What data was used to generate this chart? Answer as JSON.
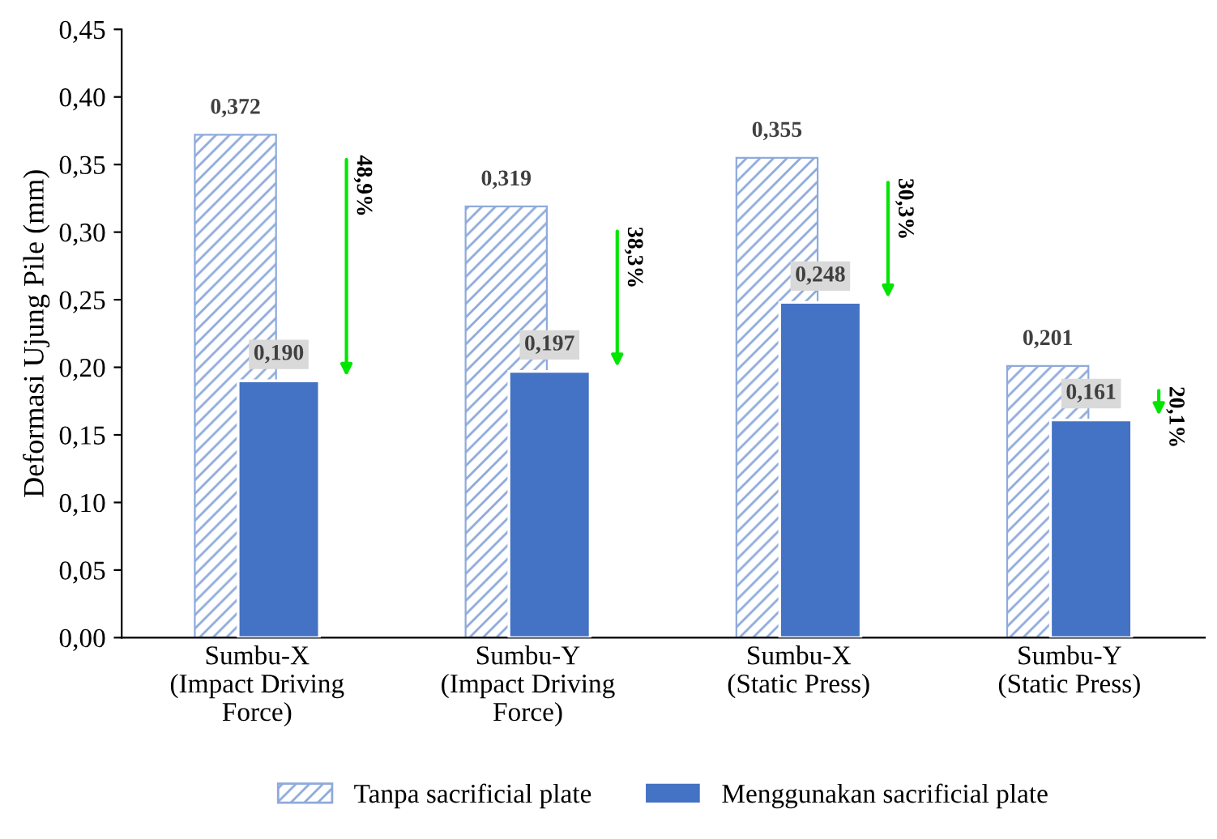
{
  "chart_data": {
    "type": "bar",
    "ylabel": "Deformasi Ujung Pile (mm)",
    "categories": [
      "Sumbu-X\n(Impact Driving\nForce)",
      "Sumbu-Y\n(Impact Driving\nForce)",
      "Sumbu-X\n(Static Press)",
      "Sumbu-Y\n(Static Press)"
    ],
    "series": [
      {
        "name": "Tanpa sacrificial plate",
        "color": "#8eaadb",
        "values": [
          0.372,
          0.319,
          0.355,
          0.201
        ],
        "value_labels": [
          "0,372",
          "0,319",
          "0,355",
          "0,201"
        ]
      },
      {
        "name": "Menggunakan sacrificial plate",
        "color": "#4472c4",
        "values": [
          0.19,
          0.197,
          0.248,
          0.161
        ],
        "value_labels": [
          "0,190",
          "0,197",
          "0,248",
          "0,161"
        ]
      }
    ],
    "ylim": [
      0,
      0.45
    ],
    "yticks": [
      {
        "value": 0,
        "label": "0,00"
      },
      {
        "value": 0.05,
        "label": "0,05"
      },
      {
        "value": 0.1,
        "label": "0,10"
      },
      {
        "value": 0.15,
        "label": "0,15"
      },
      {
        "value": 0.2,
        "label": "0,20"
      },
      {
        "value": 0.25,
        "label": "0,25"
      },
      {
        "value": 0.3,
        "label": "0,30"
      },
      {
        "value": 0.35,
        "label": "0,35"
      },
      {
        "value": 0.4,
        "label": "0,40"
      },
      {
        "value": 0.45,
        "label": "0,45"
      }
    ],
    "annotations": [
      "48,9%",
      "38,3%",
      "30,3%",
      "20,1%"
    ],
    "legend": "bottom",
    "grid": false
  }
}
